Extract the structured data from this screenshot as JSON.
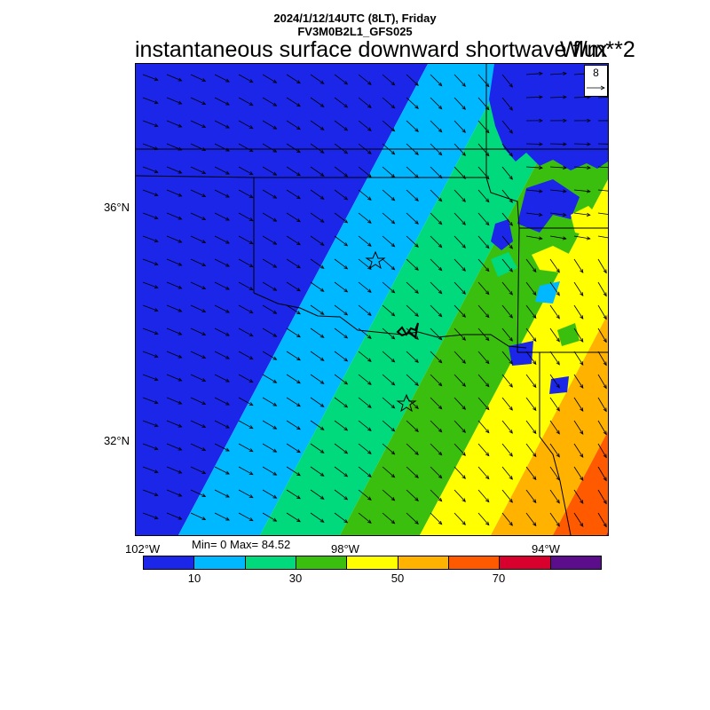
{
  "header": {
    "line1": "2024/1/12/14UTC (8LT), Friday",
    "line2": "FV3M0B2L1_GFS025",
    "title": "instantaneous surface downward shortwave flux",
    "units": "W/m**2"
  },
  "axes": {
    "lat_labels": [
      "36°N",
      "32°N"
    ],
    "lon_labels": [
      "102°W",
      "98°W",
      "94°W"
    ]
  },
  "stats": {
    "label": "Min= 0 Max= 84.52",
    "min": 0,
    "max": 84.52
  },
  "colorbar": {
    "colors": [
      "#1b26e8",
      "#00b8ff",
      "#00d97c",
      "#3bbf0f",
      "#ffff00",
      "#ffb300",
      "#ff5a00",
      "#d8002c",
      "#5c0d8c"
    ],
    "labels": [
      "10",
      "30",
      "50",
      "70"
    ]
  },
  "vector_reference": {
    "value": "8"
  }
}
